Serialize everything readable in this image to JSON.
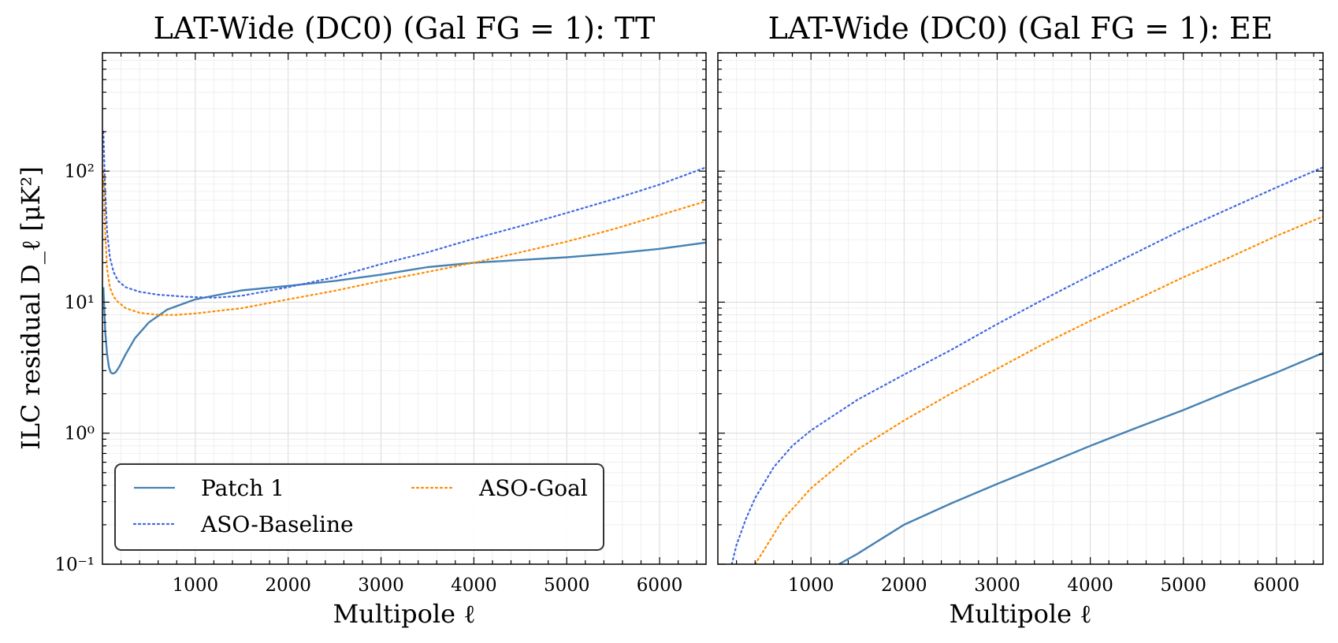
{
  "chart_data": [
    {
      "type": "line",
      "title": "LAT-Wide (DC0) (Gal FG = 1): TT",
      "xlabel": "Multipole ℓ",
      "ylabel": "ILC residual D_ℓ [μK²]",
      "xlim": [
        0,
        6500
      ],
      "ylim": [
        0.1,
        800
      ],
      "yscale": "log",
      "xticks": [
        "1000",
        "2000",
        "3000",
        "4000",
        "5000",
        "6000"
      ],
      "yticks": [
        "10⁻¹",
        "10⁰",
        "10¹",
        "10²"
      ],
      "grid": true,
      "legend": "bottom-left",
      "series": [
        {
          "name": "Patch 1",
          "style": "solid",
          "color": "#4682b4",
          "x": [
            10,
            30,
            50,
            70,
            90,
            110,
            140,
            180,
            250,
            350,
            500,
            700,
            1000,
            1500,
            2000,
            2500,
            3000,
            3500,
            4000,
            4500,
            5000,
            5500,
            6000,
            6500
          ],
          "y": [
            13,
            6,
            4,
            3.2,
            2.9,
            2.85,
            2.9,
            3.2,
            4.0,
            5.3,
            7.0,
            8.8,
            10.5,
            12.3,
            13.3,
            14.5,
            16.2,
            18.5,
            20.0,
            21.0,
            22.0,
            23.5,
            25.5,
            28.5
          ]
        },
        {
          "name": "ASO-Baseline",
          "style": "dotted",
          "color": "#4169e1",
          "x": [
            10,
            30,
            50,
            80,
            120,
            170,
            250,
            400,
            600,
            900,
            1200,
            1500,
            2000,
            2500,
            3000,
            3500,
            4000,
            4500,
            5000,
            5500,
            6000,
            6500
          ],
          "y": [
            200,
            70,
            35,
            22,
            17,
            14.5,
            13,
            12,
            11.4,
            11,
            10.8,
            11.2,
            13.0,
            15.5,
            19.5,
            24.0,
            30.5,
            38.0,
            48.0,
            61.0,
            79.0,
            107.0
          ]
        },
        {
          "name": "ASO-Goal",
          "style": "dotted",
          "color": "#ff8c00",
          "x": [
            10,
            30,
            50,
            80,
            120,
            170,
            250,
            400,
            600,
            800,
            1000,
            1500,
            2000,
            2500,
            3000,
            3500,
            4000,
            4500,
            5000,
            5500,
            6000,
            6500
          ],
          "y": [
            100,
            35,
            18,
            13,
            11,
            10,
            9,
            8.3,
            8.0,
            8.0,
            8.2,
            9.0,
            10.5,
            12.2,
            14.5,
            17.0,
            20.0,
            24.0,
            29.0,
            36.0,
            46.0,
            59.0
          ]
        }
      ]
    },
    {
      "type": "line",
      "title": "LAT-Wide (DC0) (Gal FG = 1): EE",
      "xlabel": "Multipole ℓ",
      "xlim": [
        0,
        6500
      ],
      "ylim": [
        0.1,
        800
      ],
      "yscale": "log",
      "xticks": [
        "1000",
        "2000",
        "3000",
        "4000",
        "5000",
        "6000"
      ],
      "grid": true,
      "series": [
        {
          "name": "Patch 1",
          "style": "solid",
          "color": "#4682b4",
          "x": [
            1300,
            1500,
            2000,
            2500,
            3000,
            3500,
            4000,
            4500,
            5000,
            5500,
            6000,
            6500
          ],
          "y": [
            0.1,
            0.12,
            0.2,
            0.29,
            0.41,
            0.57,
            0.8,
            1.1,
            1.5,
            2.1,
            2.9,
            4.1
          ]
        },
        {
          "name": "ASO-Baseline",
          "style": "dotted",
          "color": "#4169e1",
          "x": [
            150,
            200,
            300,
            400,
            600,
            800,
            1000,
            1500,
            2000,
            2500,
            3000,
            3500,
            4000,
            4500,
            5000,
            5500,
            6000,
            6500
          ],
          "y": [
            0.1,
            0.14,
            0.22,
            0.32,
            0.55,
            0.8,
            1.05,
            1.8,
            2.8,
            4.3,
            6.8,
            10.5,
            16.0,
            24.0,
            36.0,
            52.0,
            75.0,
            107.0
          ]
        },
        {
          "name": "ASO-Goal",
          "style": "dotted",
          "color": "#ff8c00",
          "x": [
            400,
            500,
            700,
            1000,
            1500,
            2000,
            2500,
            3000,
            3500,
            4000,
            4500,
            5000,
            5500,
            6000,
            6500
          ],
          "y": [
            0.1,
            0.13,
            0.22,
            0.38,
            0.75,
            1.25,
            2.0,
            3.1,
            4.8,
            7.2,
            10.5,
            15.5,
            22.0,
            32.0,
            45.0
          ]
        }
      ]
    }
  ]
}
